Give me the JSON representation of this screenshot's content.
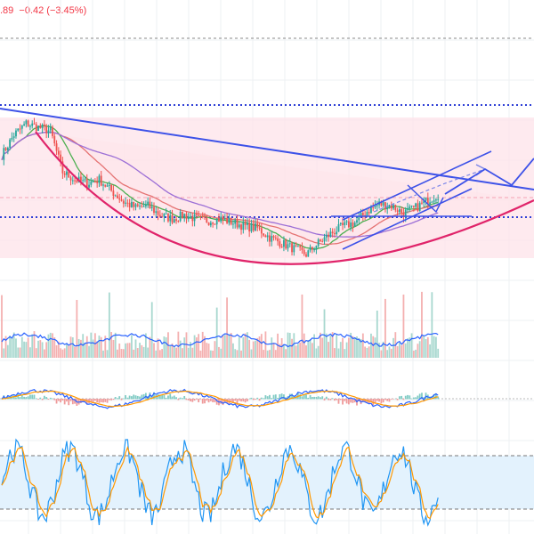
{
  "header": {
    "price_readout": ".89  −0.42 (−3.45%)",
    "color": "#f23645"
  },
  "colors": {
    "up": "#26a69a",
    "down": "#ef5350",
    "trendline": "#3d52e8",
    "cup": "#e0246a",
    "zone_fill": "#fde3ea",
    "ma_fast": "#4caf50",
    "ma_mid": "#e57373",
    "ma_slow": "#9c6fd6",
    "macd": "#2962ff",
    "signal": "#ff9800",
    "stoch_k": "#2196f3",
    "stoch_d": "#ff9800",
    "stoch_band": "#e3f2fd"
  },
  "chart_data": {
    "type": "line",
    "title": "",
    "xlabel": "",
    "ylabel": "",
    "grid": true,
    "panels": [
      "price",
      "volume",
      "macd",
      "stochastic"
    ],
    "stochastic_band": [
      20,
      80
    ],
    "stoch_ylim": [
      0,
      100
    ],
    "price_anchors": [
      [
        0,
        0.55
      ],
      [
        6,
        0.66
      ],
      [
        12,
        0.72
      ],
      [
        18,
        0.7
      ],
      [
        24,
        0.68
      ],
      [
        30,
        0.46
      ],
      [
        36,
        0.42
      ],
      [
        42,
        0.4
      ],
      [
        48,
        0.42
      ],
      [
        54,
        0.36
      ],
      [
        60,
        0.3
      ],
      [
        66,
        0.27
      ],
      [
        72,
        0.28
      ],
      [
        78,
        0.23
      ],
      [
        84,
        0.21
      ],
      [
        90,
        0.23
      ],
      [
        96,
        0.21
      ],
      [
        102,
        0.2
      ],
      [
        108,
        0.21
      ],
      [
        114,
        0.19
      ],
      [
        120,
        0.17
      ],
      [
        126,
        0.16
      ],
      [
        132,
        0.11
      ],
      [
        138,
        0.08
      ],
      [
        144,
        0.05
      ],
      [
        150,
        0.02
      ],
      [
        156,
        0.08
      ],
      [
        162,
        0.13
      ],
      [
        168,
        0.17
      ],
      [
        174,
        0.19
      ],
      [
        180,
        0.25
      ],
      [
        186,
        0.29
      ],
      [
        192,
        0.28
      ],
      [
        198,
        0.24
      ],
      [
        204,
        0.27
      ],
      [
        210,
        0.31
      ],
      [
        215,
        0.34
      ]
    ],
    "annotations": [
      "descending trendline",
      "rounding bottom (cup) arc",
      "ascending channel",
      "projected path arrow",
      "horizontal dotted levels"
    ]
  }
}
